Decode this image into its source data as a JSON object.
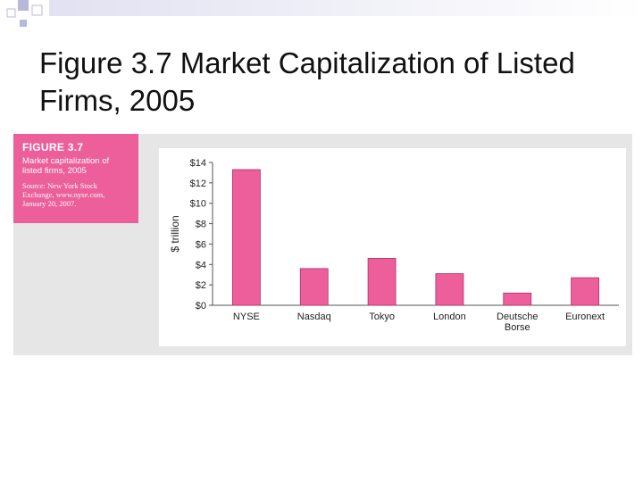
{
  "slide": {
    "title": "Figure 3.7 Market Capitalization of Listed Firms, 2005"
  },
  "figure_caption": {
    "label": "FIGURE 3.7",
    "text": "Market capitalization of listed firms, 2005",
    "source": "Source: New York Stock Exchange, www.nyse.com, January 20, 2007."
  },
  "colors": {
    "accent": "#ec5f9a",
    "bar": "#ec5f9a",
    "panel": "#e6e6e6"
  },
  "chart_data": {
    "type": "bar",
    "categories": [
      "NYSE",
      "Nasdaq",
      "Tokyo",
      "London",
      "Deutsche Borse",
      "Euronext"
    ],
    "values": [
      13.3,
      3.6,
      4.6,
      3.1,
      1.2,
      2.7
    ],
    "ylabel": "$ trillion",
    "ylim": [
      0,
      14
    ],
    "ytick_values": [
      0,
      2,
      4,
      6,
      8,
      10,
      12,
      14
    ],
    "ytick_labels": [
      "$0",
      "$2",
      "$4",
      "$6",
      "$8",
      "$10",
      "$12",
      "$14"
    ],
    "grid": false
  }
}
